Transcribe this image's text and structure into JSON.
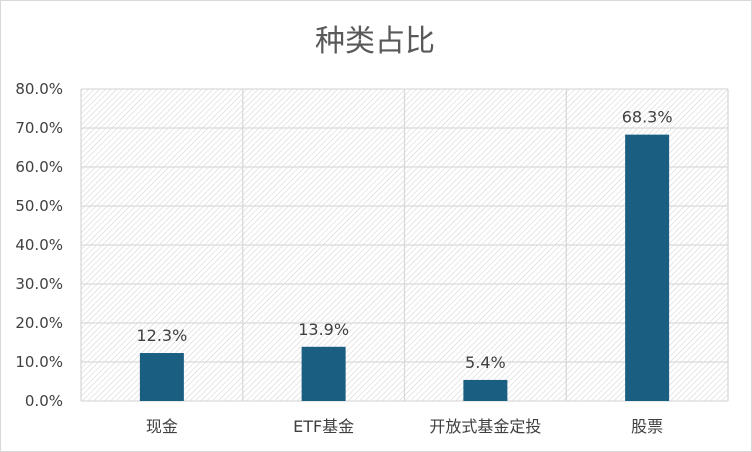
{
  "chart_data": {
    "type": "bar",
    "title": "种类占比",
    "xlabel": "",
    "ylabel": "",
    "categories": [
      "现金",
      "ETF基金",
      "开放式基金定投",
      "股票"
    ],
    "values": [
      12.3,
      13.9,
      5.4,
      68.3
    ],
    "value_labels": [
      "12.3%",
      "13.9%",
      "5.4%",
      "68.3%"
    ],
    "ylim": [
      0,
      80
    ],
    "y_ticks": [
      0,
      10,
      20,
      30,
      40,
      50,
      60,
      70,
      80
    ],
    "y_tick_labels": [
      "0.0%",
      "10.0%",
      "20.0%",
      "30.0%",
      "40.0%",
      "50.0%",
      "60.0%",
      "70.0%",
      "80.0%"
    ],
    "grid": true,
    "legend": "none",
    "colors": {
      "bar": "#1a5e82",
      "grid": "#d9d9d9",
      "hatch": "#d0d0d0",
      "text": "#404040",
      "title": "#595959"
    }
  }
}
